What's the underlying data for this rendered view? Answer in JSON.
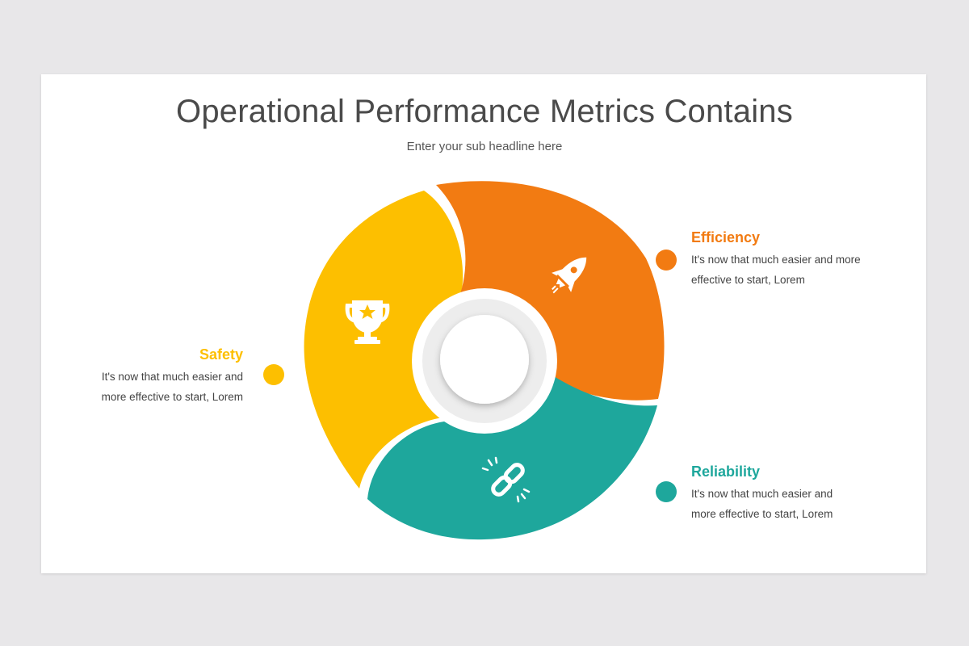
{
  "title": "Operational Performance Metrics Contains",
  "subtitle": "Enter your sub headline here",
  "items": {
    "efficiency": {
      "title": "Efficiency",
      "line1": "It's now that much easier and more",
      "line2": "effective to start, Lorem",
      "color": "#f27b12",
      "icon": "rocket-icon"
    },
    "safety": {
      "title": "Safety",
      "line1": "It's now that much easier and",
      "line2": "more effective to start, Lorem",
      "color": "#fdbf00",
      "icon": "trophy-icon"
    },
    "reliability": {
      "title": "Reliability",
      "line1": "It's now that much easier and",
      "line2": "more effective to start, Lorem",
      "color": "#1ea79c",
      "icon": "link-icon"
    }
  }
}
